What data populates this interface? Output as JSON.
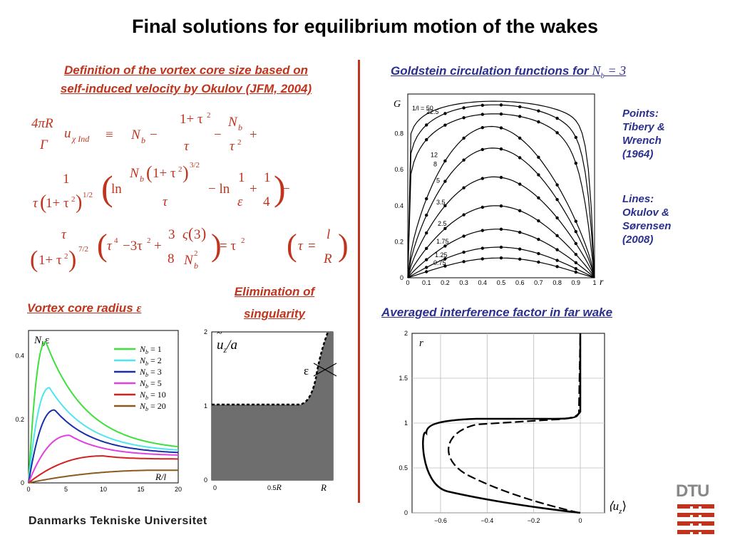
{
  "title": "Final solutions for equilibrium motion of the wakes",
  "left_header": {
    "line1": "Definition of the vortex core size based on",
    "line2": "self-induced velocity by Okulov (JFM, 2004)"
  },
  "right_header": {
    "text": "Goldstein circulation functions for",
    "math": "N",
    "math_sub": "b",
    "math_eq": "= 3"
  },
  "eliminations": {
    "line1": "Elimination of",
    "line2": "singularity"
  },
  "core_radius_label": {
    "text": "Vortex core radius",
    "symbol": "ε"
  },
  "interference_label": "Averaged interference factor in far wake",
  "notes": {
    "points_lines": [
      "Points:",
      "Tibery &",
      "Wrench",
      "(1964)"
    ],
    "lines_lines": [
      "Lines:",
      "Okulov &",
      "Sørensen",
      "(2008)"
    ]
  },
  "footer": "Danmarks Tekniske Universitet",
  "logo_text": "DTU",
  "colors": {
    "accent": "#c0341d",
    "blue": "#2b2f8f"
  },
  "goldstein": {
    "axis_label_y": "G",
    "axis_label_x": "r",
    "yticks": [
      "0",
      "0.2",
      "0.4",
      "0.6",
      "0.8"
    ],
    "xticks": [
      "0",
      "0.1",
      "0.2",
      "0.3",
      "0.4",
      "0.5",
      "0.6",
      "0.7",
      "0.8",
      "0.9",
      "1"
    ],
    "curve_labels": [
      "1/l = 50",
      "22.5",
      "12",
      "8",
      "5",
      "3.5",
      "2.5",
      "1.75",
      "1.25",
      "0.75"
    ],
    "peaks": [
      0.98,
      0.96,
      0.91,
      0.84,
      0.72,
      0.56,
      0.4,
      0.27,
      0.17,
      0.11
    ]
  },
  "nb_chart": {
    "ylabel": "N",
    "ylabel_sub": "b",
    "ylabel_sym": "ε",
    "xlabel": "R/l",
    "yticks": [
      "0",
      "0.2",
      "0.4"
    ],
    "xticks": [
      "0",
      "5",
      "10",
      "15",
      "20"
    ],
    "legend": [
      {
        "label": "N",
        "sub": "b",
        "value": "= 1",
        "color": "#3ee03e"
      },
      {
        "label": "N",
        "sub": "b",
        "value": "= 2",
        "color": "#4ee6ee"
      },
      {
        "label": "N",
        "sub": "b",
        "value": "= 3",
        "color": "#1a2fa8"
      },
      {
        "label": "N",
        "sub": "b",
        "value": "= 5",
        "color": "#e040e0"
      },
      {
        "label": "N",
        "sub": "b",
        "value": "= 10",
        "color": "#d42020"
      },
      {
        "label": "N",
        "sub": "b",
        "value": "= 20",
        "color": "#8b5a1f"
      }
    ]
  },
  "singularity_chart": {
    "ylabel": "u",
    "ylabel_rest": "/a",
    "eps": "ε",
    "yticks": [
      "0",
      "1",
      "2"
    ],
    "xticks": [
      "0",
      "0.5",
      "R"
    ],
    "xtick_mid_suffix": "R"
  },
  "interference_chart": {
    "ylabel": "r",
    "xlabel": "⟨u",
    "xlabel_sub": "z",
    "xlabel_end": "⟩",
    "yticks": [
      "0",
      "0.5",
      "1",
      "1.5",
      "2"
    ],
    "xticks": [
      "−0.6",
      "−0.4",
      "−0.2",
      "0"
    ]
  },
  "chart_data": [
    {
      "type": "line",
      "title": "Goldstein circulation functions for N_b = 3",
      "xlabel": "r",
      "ylabel": "G",
      "xlim": [
        0,
        1
      ],
      "ylim": [
        0,
        1
      ],
      "series": [
        {
          "name": "1/l = 50",
          "peak": 0.98
        },
        {
          "name": "22.5",
          "peak": 0.96
        },
        {
          "name": "12",
          "peak": 0.91
        },
        {
          "name": "8",
          "peak": 0.84
        },
        {
          "name": "5",
          "peak": 0.72
        },
        {
          "name": "3.5",
          "peak": 0.56
        },
        {
          "name": "2.5",
          "peak": 0.4
        },
        {
          "name": "1.75",
          "peak": 0.27
        },
        {
          "name": "1.25",
          "peak": 0.17
        },
        {
          "name": "0.75",
          "peak": 0.11
        }
      ]
    },
    {
      "type": "line",
      "title": "Vortex core radius ε",
      "xlabel": "R/l",
      "ylabel": "N_b ε",
      "xlim": [
        0,
        20
      ],
      "ylim": [
        0,
        0.48
      ],
      "series": [
        {
          "name": "N_b = 1",
          "peak_x": 2.3,
          "peak_y": 0.445,
          "end_y": 0.1
        },
        {
          "name": "N_b = 2",
          "peak_x": 2.8,
          "peak_y": 0.3,
          "end_y": 0.095
        },
        {
          "name": "N_b = 3",
          "peak_x": 3.5,
          "peak_y": 0.23,
          "end_y": 0.09
        },
        {
          "name": "N_b = 5",
          "peak_x": 5.5,
          "peak_y": 0.15,
          "end_y": 0.085
        },
        {
          "name": "N_b = 10",
          "peak_x": 10,
          "peak_y": 0.085,
          "end_y": 0.075
        },
        {
          "name": "N_b = 20",
          "peak_x": 18,
          "peak_y": 0.04,
          "end_y": 0.04
        }
      ]
    },
    {
      "type": "area",
      "title": "Elimination of singularity",
      "ylabel": "u_z/a",
      "ylim": [
        0,
        2
      ],
      "xticks": [
        "0",
        "0.5R",
        "R"
      ]
    },
    {
      "type": "line",
      "title": "Averaged interference factor in far wake",
      "xlabel": "<u_z>",
      "ylabel": "r",
      "xlim": [
        -0.7,
        0
      ],
      "ylim": [
        0,
        2
      ]
    }
  ]
}
